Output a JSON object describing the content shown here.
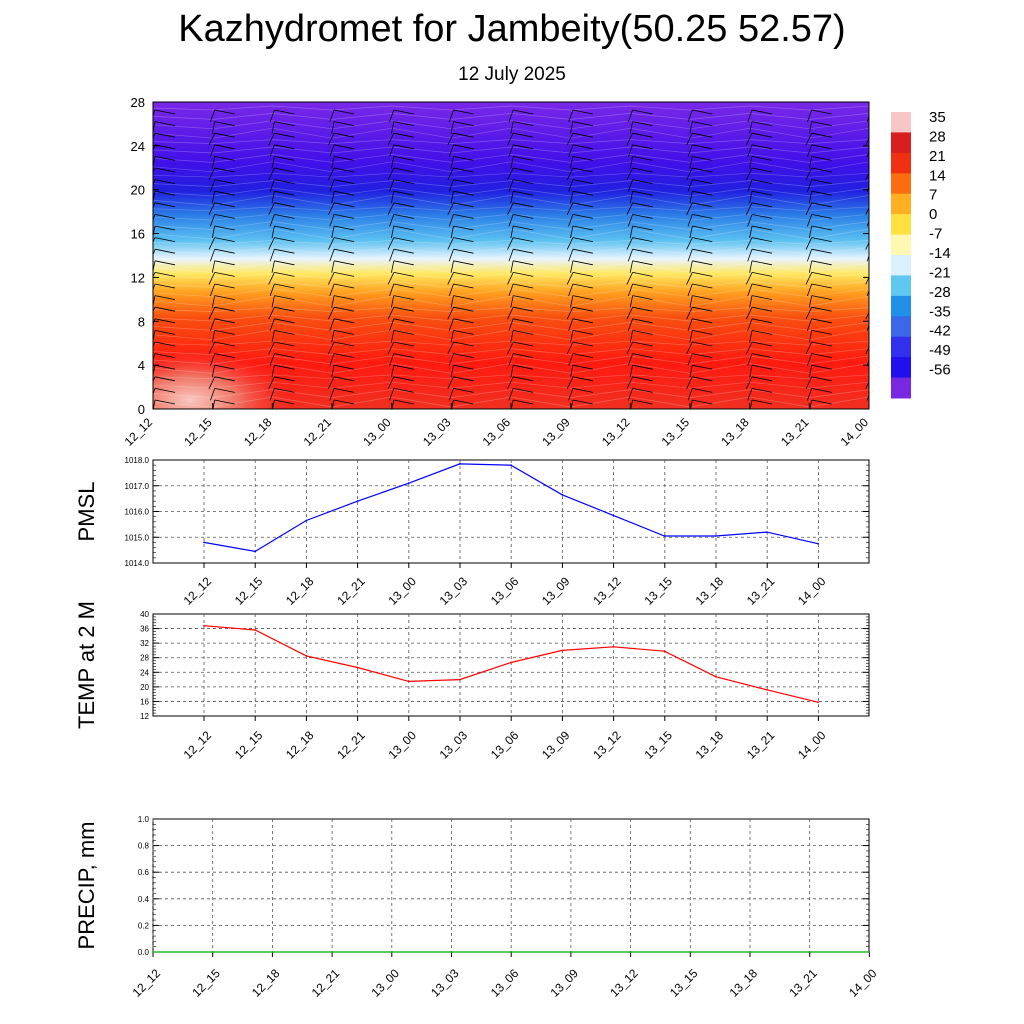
{
  "title": "Kazhydromet for Jambeity(50.25 52.57)",
  "subtitle": "12 July 2025",
  "time_labels": [
    "12_12",
    "12_15",
    "12_18",
    "12_21",
    "13_00",
    "13_03",
    "13_06",
    "13_09",
    "13_12",
    "13_15",
    "13_18",
    "13_21",
    "14_00"
  ],
  "chart_data": [
    {
      "type": "heatmap",
      "name": "cross-section",
      "x": [
        "12_12",
        "12_15",
        "12_18",
        "12_21",
        "13_00",
        "13_03",
        "13_06",
        "13_09",
        "13_12",
        "13_15",
        "13_18",
        "13_21",
        "14_00"
      ],
      "yticks": [
        0,
        4,
        8,
        12,
        16,
        20,
        24,
        28
      ],
      "ylim": [
        0,
        28
      ],
      "colorbar": {
        "labels": [
          "35",
          "28",
          "21",
          "14",
          "7",
          "0",
          "-7",
          "-14",
          "-21",
          "-28",
          "-35",
          "-42",
          "-49",
          "-56"
        ],
        "colors": [
          "#f7c6c6",
          "#d81e1e",
          "#f03010",
          "#fa6e10",
          "#ffb020",
          "#ffe040",
          "#fff8b0",
          "#d8f0ff",
          "#60c8f0",
          "#2090e8",
          "#3a68e8",
          "#3030ee",
          "#2010f0",
          "#7828e0"
        ]
      },
      "profile": [
        {
          "level": 0,
          "value": 28
        },
        {
          "level": 5,
          "value": 21
        },
        {
          "level": 9,
          "value": 10
        },
        {
          "level": 12,
          "value": 0
        },
        {
          "level": 13.5,
          "value": -10
        },
        {
          "level": 16,
          "value": -28
        },
        {
          "level": 19,
          "value": -45
        },
        {
          "level": 22,
          "value": -56
        },
        {
          "level": 28,
          "value": -60
        }
      ]
    },
    {
      "type": "line",
      "name": "pmsl",
      "ylabel": "PMSL",
      "x": [
        "12_12",
        "12_15",
        "12_18",
        "12_21",
        "13_00",
        "13_03",
        "13_06",
        "13_09",
        "13_12",
        "13_15",
        "13_18",
        "13_21",
        "14_00"
      ],
      "ylim": [
        1014.0,
        1018.0
      ],
      "yticks": [
        "1014.0",
        "1015.0",
        "1016.0",
        "1017.0",
        "1018.0"
      ],
      "series": [
        {
          "color": "#0000ff",
          "values": [
            1014.8,
            1014.45,
            1015.65,
            1016.4,
            1017.1,
            1017.85,
            1017.8,
            1016.65,
            1015.85,
            1015.05,
            1015.05,
            1015.2,
            1014.75
          ]
        }
      ]
    },
    {
      "type": "line",
      "name": "temp2m",
      "ylabel": "TEMP at 2 M",
      "x": [
        "12_12",
        "12_15",
        "12_18",
        "12_21",
        "13_00",
        "13_03",
        "13_06",
        "13_09",
        "13_12",
        "13_15",
        "13_18",
        "13_21",
        "14_00"
      ],
      "ylim": [
        12,
        40
      ],
      "yticks": [
        "12",
        "16",
        "20",
        "24",
        "28",
        "32",
        "36",
        "40"
      ],
      "series": [
        {
          "color": "#ff0000",
          "values": [
            36.8,
            35.6,
            28.5,
            25.3,
            21.5,
            22.0,
            26.7,
            30.0,
            31.0,
            29.8,
            22.8,
            19.2,
            15.8
          ]
        }
      ]
    },
    {
      "type": "line",
      "name": "precip",
      "ylabel": "PRECIP, mm",
      "x": [
        "12_12",
        "12_15",
        "12_18",
        "12_21",
        "13_00",
        "13_03",
        "13_06",
        "13_09",
        "13_12",
        "13_15",
        "13_18",
        "13_21",
        "14_00"
      ],
      "ylim": [
        0.0,
        1.0
      ],
      "yticks": [
        "0.0",
        "0.2",
        "0.4",
        "0.6",
        "0.8",
        "1.0"
      ],
      "series": [
        {
          "color": "#00aa00",
          "values": [
            0,
            0,
            0,
            0,
            0,
            0,
            0,
            0,
            0,
            0,
            0,
            0,
            0
          ]
        }
      ]
    }
  ]
}
